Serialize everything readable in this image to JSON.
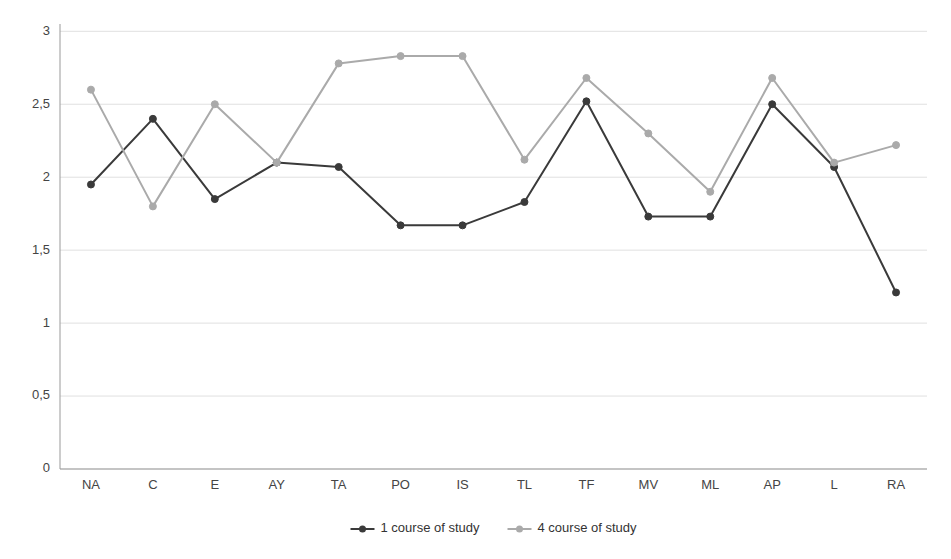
{
  "chart_data": {
    "type": "line",
    "categories": [
      "NA",
      "C",
      "E",
      "AY",
      "TA",
      "PO",
      "IS",
      "TL",
      "TF",
      "MV",
      "ML",
      "AP",
      "L",
      "RA"
    ],
    "series": [
      {
        "name": "1 course of study",
        "color": "#3a3a3a",
        "marker": "circle",
        "line_style": "solid",
        "values": [
          1.95,
          2.4,
          1.85,
          2.1,
          2.07,
          1.67,
          1.67,
          1.83,
          2.52,
          1.73,
          1.73,
          2.5,
          2.07,
          1.21
        ]
      },
      {
        "name": "4 course of study",
        "color": "#aaaaaa",
        "marker": "circle",
        "line_style": "solid",
        "values": [
          2.6,
          1.8,
          2.5,
          2.1,
          2.78,
          2.83,
          2.83,
          2.12,
          2.68,
          2.3,
          1.9,
          2.68,
          2.1,
          2.22
        ]
      }
    ],
    "ylim": [
      0,
      3.05
    ],
    "yticks": [
      0,
      {
        "value": 0.5,
        "label": "0,5"
      },
      1,
      {
        "value": 1.5,
        "label": "1,5"
      },
      2,
      {
        "value": 2.5,
        "label": "2,5"
      },
      3
    ],
    "grid": true,
    "legend": "bottom"
  }
}
